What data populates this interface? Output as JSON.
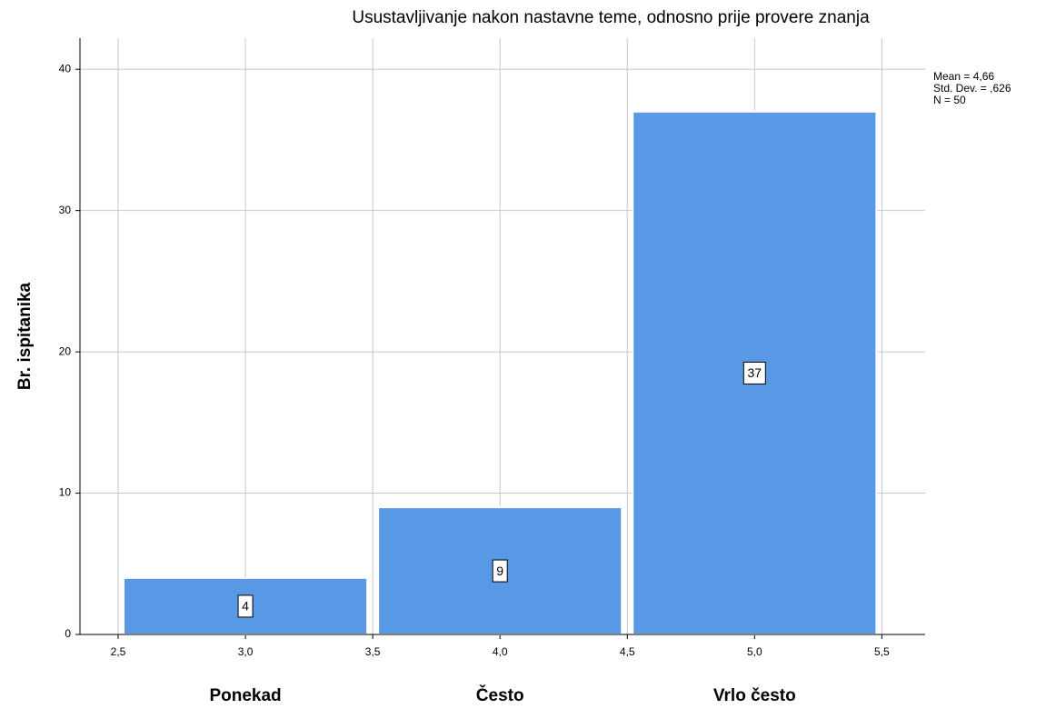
{
  "chart_data": {
    "type": "histogram",
    "title": "Usustavljivanje nakon nastavne teme, odnosno prije provere znanja",
    "y_label": "Br. ispitanika",
    "bins": [
      2.5,
      3.5,
      4.5,
      5.5
    ],
    "counts": [
      4,
      9,
      37
    ],
    "categories": [
      "Ponekad",
      "Često",
      "Vrlo često"
    ],
    "color": "#5898e4",
    "xlim": [
      2.35,
      5.67
    ],
    "ylim": [
      0,
      42.2
    ],
    "xticks": [
      {
        "value": 2.5,
        "label": "2,5"
      },
      {
        "value": 3.0,
        "label": "3,0"
      },
      {
        "value": 3.5,
        "label": "3,5"
      },
      {
        "value": 4.0,
        "label": "4,0"
      },
      {
        "value": 4.5,
        "label": "4,5"
      },
      {
        "value": 5.0,
        "label": "5,0"
      },
      {
        "value": 5.5,
        "label": "5,5"
      }
    ],
    "yticks": [
      0,
      10,
      20,
      30,
      40
    ],
    "grid": true,
    "annotations": [
      "Mean = 4,66",
      "Std. Dev. = ,626",
      "N = 50"
    ]
  }
}
